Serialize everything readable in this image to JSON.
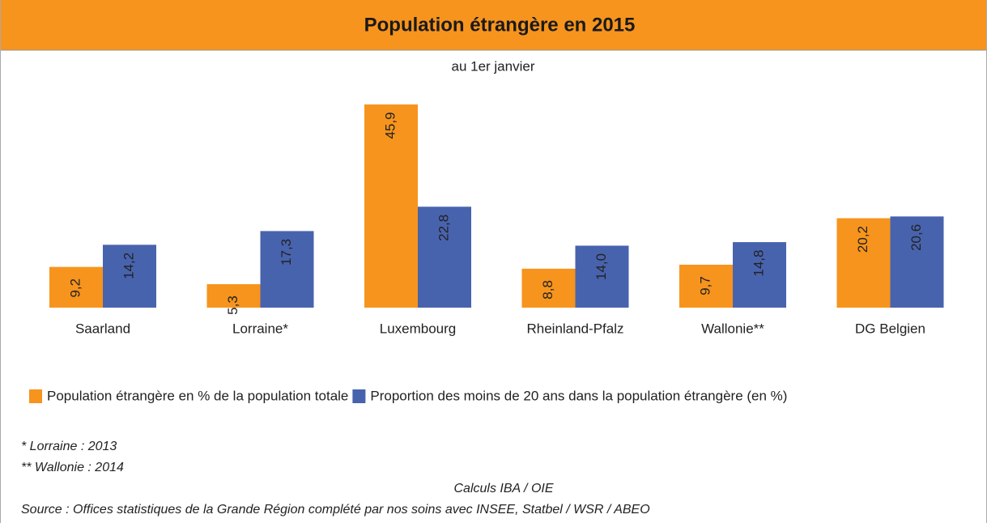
{
  "chart_data": {
    "type": "bar",
    "title": "Population étrangère en 2015",
    "subtitle": "au 1er janvier",
    "categories": [
      "Saarland",
      "Lorraine*",
      "Luxembourg",
      "Rheinland-Pfalz",
      "Wallonie**",
      "DG Belgien"
    ],
    "series": [
      {
        "name": "Population étrangère en % de la population totale",
        "color": "#f7941d",
        "values": [
          9.2,
          5.3,
          45.9,
          8.8,
          9.7,
          20.2
        ],
        "value_labels": [
          "9,2",
          "5,3",
          "45,9",
          "8,8",
          "9,7",
          "20,2"
        ]
      },
      {
        "name": "Proportion des moins de 20 ans dans la population étrangère (en %)",
        "color": "#4863ae",
        "values": [
          14.2,
          17.3,
          22.8,
          14.0,
          14.8,
          20.6
        ],
        "value_labels": [
          "14,2",
          "17,3",
          "22,8",
          "14,0",
          "14,8",
          "20,6"
        ]
      }
    ],
    "ylim": [
      0,
      50
    ],
    "notes": [
      "* Lorraine : 2013",
      "** Wallonie : 2014"
    ],
    "credit": "Calculs IBA / OIE",
    "source": "Source : Offices statistiques de la Grande Région complété par nos soins avec INSEE, Statbel / WSR / ABEO"
  }
}
